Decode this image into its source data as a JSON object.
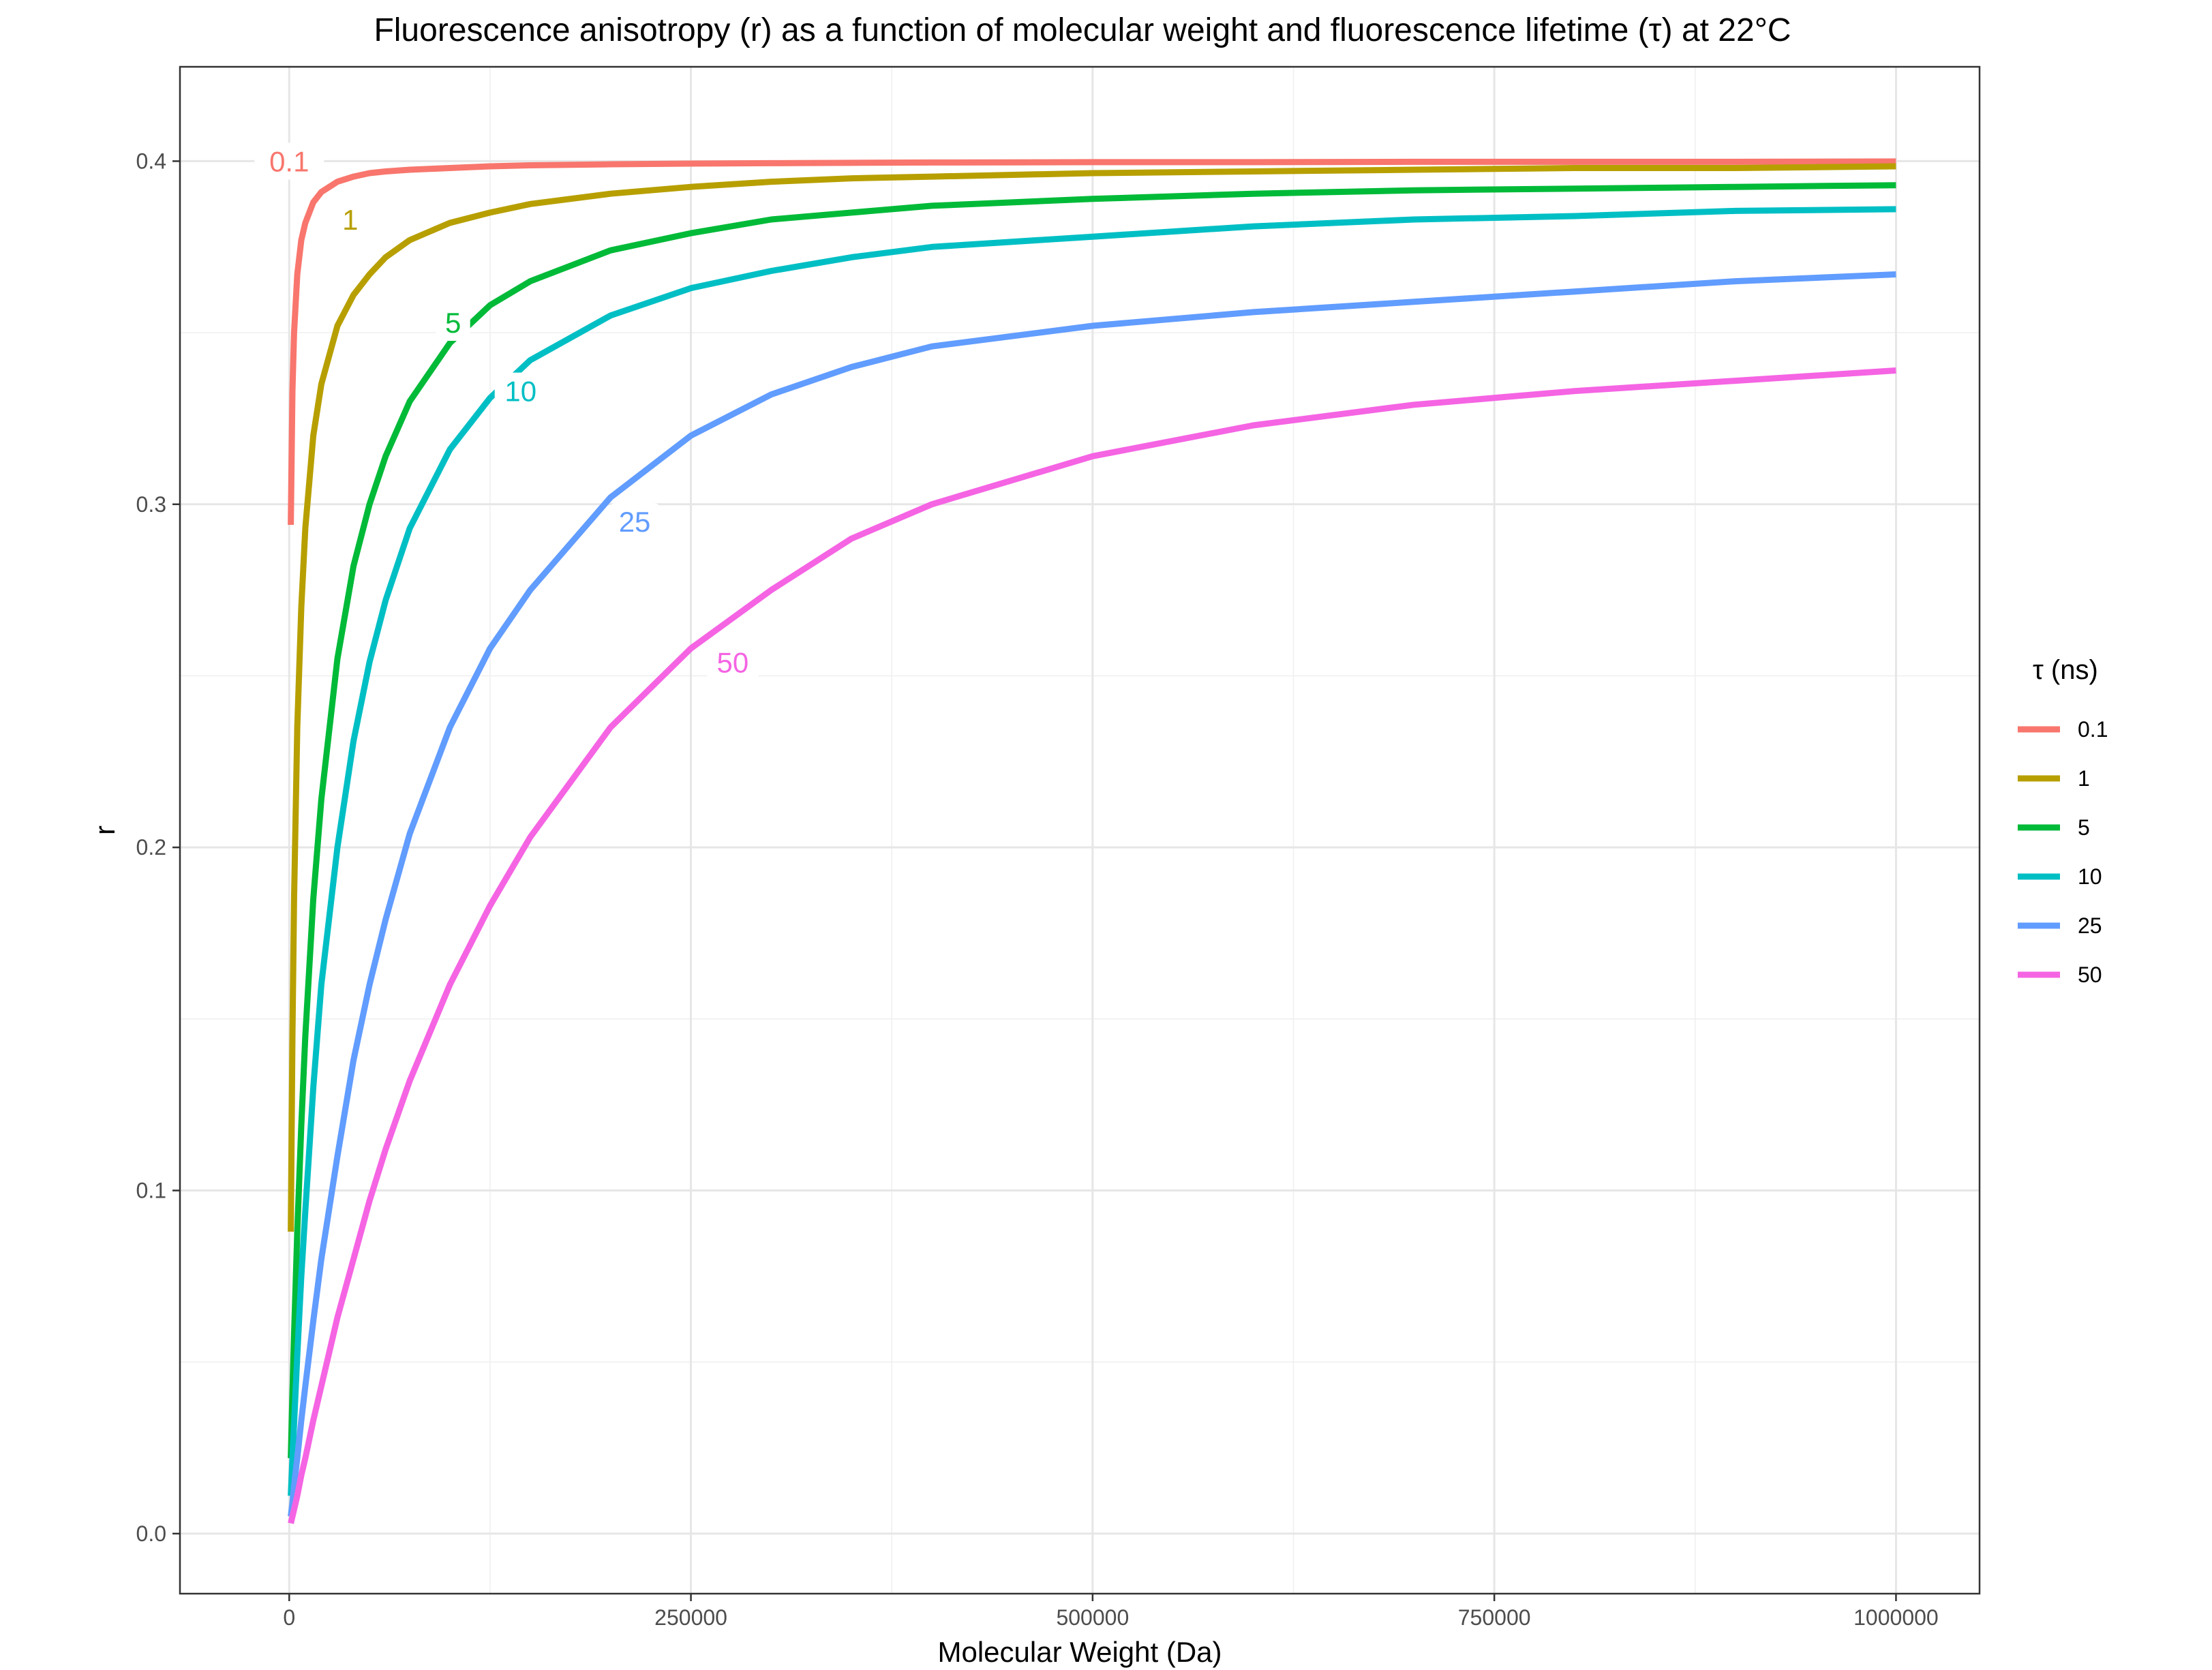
{
  "chart_data": {
    "type": "line",
    "title": "Fluorescence anisotropy (r) as a function of molecular weight and fluorescence lifetime (τ) at 22°C",
    "xlabel": "Molecular Weight (Da)",
    "ylabel": "r",
    "xlim": [
      -68000,
      1052000
    ],
    "ylim": [
      -0.0175,
      0.4275
    ],
    "x_ticks": [
      0,
      250000,
      500000,
      750000,
      1000000
    ],
    "x_tick_labels": [
      "0",
      "250000",
      "500000",
      "750000",
      "1000000"
    ],
    "y_ticks": [
      0.0,
      0.1,
      0.2,
      0.3,
      0.4
    ],
    "y_tick_labels": [
      "0.0",
      "0.1",
      "0.2",
      "0.3",
      "0.4"
    ],
    "grid": true,
    "legend": {
      "title": "τ (ns)",
      "placement": "right"
    },
    "x": [
      1000,
      2000,
      3000,
      5000,
      7500,
      10000,
      15000,
      20000,
      30000,
      40000,
      50000,
      60000,
      75000,
      100000,
      125000,
      150000,
      200000,
      250000,
      300000,
      350000,
      400000,
      500000,
      600000,
      700000,
      800000,
      900000,
      1000000
    ],
    "series": [
      {
        "name": "0.1",
        "color": "#F8766D",
        "label": "0.1",
        "label_at": {
          "x": 0,
          "y": 0.4
        },
        "values": [
          0.294,
          0.333,
          0.35,
          0.367,
          0.377,
          0.382,
          0.388,
          0.391,
          0.394,
          0.3955,
          0.3965,
          0.397,
          0.3975,
          0.398,
          0.3985,
          0.3988,
          0.3991,
          0.3993,
          0.3994,
          0.3995,
          0.3996,
          0.3997,
          0.3997,
          0.3998,
          0.3998,
          0.3998,
          0.3999
        ]
      },
      {
        "name": "1",
        "color": "#B79F00",
        "label": "1",
        "label_at": {
          "x": 38000,
          "y": 0.383
        },
        "values": [
          0.088,
          0.145,
          0.185,
          0.235,
          0.27,
          0.293,
          0.32,
          0.335,
          0.352,
          0.361,
          0.367,
          0.372,
          0.377,
          0.382,
          0.385,
          0.3875,
          0.3905,
          0.3925,
          0.394,
          0.395,
          0.3955,
          0.3965,
          0.397,
          0.3975,
          0.398,
          0.398,
          0.3985
        ]
      },
      {
        "name": "5",
        "color": "#00BA38",
        "label": "5",
        "label_at": {
          "x": 102000,
          "y": 0.353
        },
        "values": [
          0.022,
          0.041,
          0.058,
          0.088,
          0.119,
          0.145,
          0.185,
          0.214,
          0.255,
          0.282,
          0.3,
          0.314,
          0.33,
          0.347,
          0.358,
          0.365,
          0.374,
          0.379,
          0.383,
          0.385,
          0.387,
          0.389,
          0.3905,
          0.3915,
          0.392,
          0.3925,
          0.393
        ]
      },
      {
        "name": "10",
        "color": "#00BFC4",
        "label": "10",
        "label_at": {
          "x": 144000,
          "y": 0.333
        },
        "values": [
          0.011,
          0.022,
          0.032,
          0.052,
          0.075,
          0.094,
          0.13,
          0.16,
          0.2,
          0.231,
          0.254,
          0.272,
          0.293,
          0.316,
          0.331,
          0.342,
          0.355,
          0.363,
          0.368,
          0.372,
          0.375,
          0.378,
          0.381,
          0.383,
          0.384,
          0.3855,
          0.386
        ]
      },
      {
        "name": "25",
        "color": "#619CFF",
        "label": "25",
        "label_at": {
          "x": 215000,
          "y": 0.295
        },
        "values": [
          0.005,
          0.009,
          0.014,
          0.022,
          0.033,
          0.043,
          0.062,
          0.08,
          0.11,
          0.138,
          0.16,
          0.179,
          0.204,
          0.235,
          0.258,
          0.275,
          0.302,
          0.32,
          0.332,
          0.34,
          0.346,
          0.352,
          0.356,
          0.359,
          0.362,
          0.365,
          0.367
        ]
      },
      {
        "name": "50",
        "color": "#F564E3",
        "label": "50",
        "label_at": {
          "x": 276000,
          "y": 0.254
        },
        "values": [
          0.003,
          0.005,
          0.007,
          0.011,
          0.017,
          0.022,
          0.033,
          0.043,
          0.063,
          0.08,
          0.097,
          0.112,
          0.132,
          0.16,
          0.183,
          0.203,
          0.235,
          0.258,
          0.275,
          0.29,
          0.3,
          0.314,
          0.323,
          0.329,
          0.333,
          0.336,
          0.339
        ]
      }
    ]
  }
}
